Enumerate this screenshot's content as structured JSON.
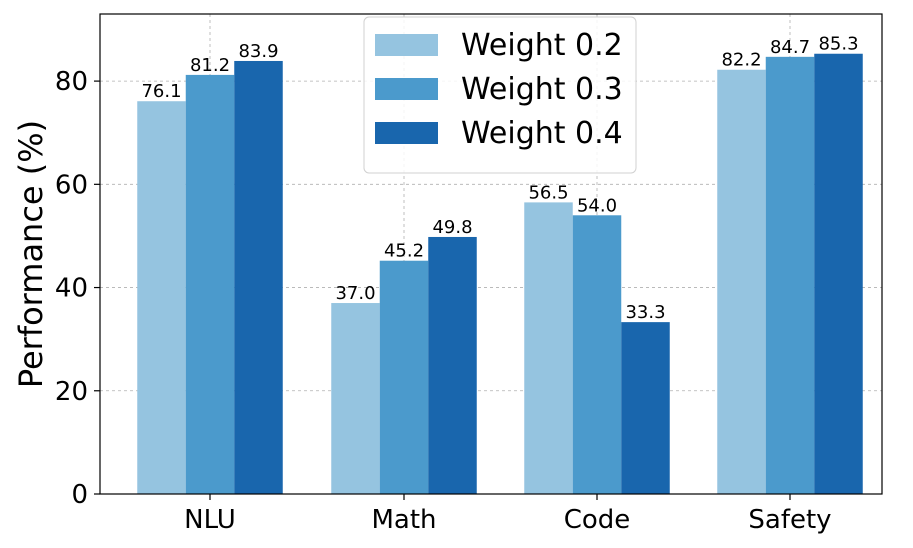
{
  "chart_data": {
    "type": "bar",
    "title": "",
    "xlabel": "",
    "ylabel": "Performance (%)",
    "ylim": [
      0,
      93
    ],
    "yticks": [
      "0",
      "20",
      "40",
      "60",
      "80"
    ],
    "ytick_values": [
      0,
      20,
      40,
      60,
      80
    ],
    "categories": [
      "NLU",
      "Math",
      "Code",
      "Safety"
    ],
    "grid": true,
    "legend_position": "top-center",
    "series": [
      {
        "name": "Weight 0.2",
        "color": "#95c4e0",
        "values": [
          76.1,
          37.0,
          56.5,
          82.2
        ],
        "labels": [
          "76.1",
          "37.0",
          "56.5",
          "82.2"
        ]
      },
      {
        "name": "Weight 0.3",
        "color": "#4b9acc",
        "values": [
          81.2,
          45.2,
          54.0,
          84.7
        ],
        "labels": [
          "81.2",
          "45.2",
          "54.0",
          "84.7"
        ]
      },
      {
        "name": "Weight 0.4",
        "color": "#1966ad",
        "values": [
          83.9,
          49.8,
          33.3,
          85.3
        ],
        "labels": [
          "83.9",
          "49.8",
          "33.3",
          "85.3"
        ]
      }
    ]
  }
}
